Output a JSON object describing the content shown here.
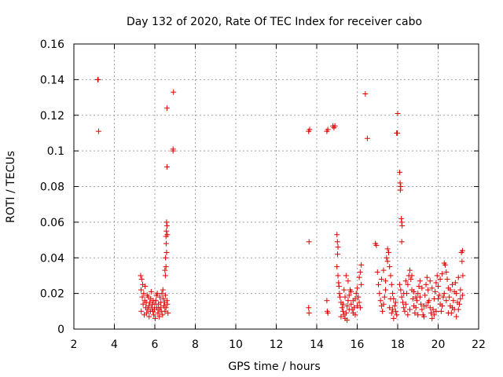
{
  "chart_data": {
    "type": "scatter",
    "title": "Day 132 of 2020, Rate Of TEC Index for receiver cabo",
    "xlabel": "GPS time / hours",
    "ylabel": "ROTI / TECUs",
    "xlim": [
      2,
      22
    ],
    "ylim": [
      0,
      0.16
    ],
    "x_ticks": [
      2,
      4,
      6,
      8,
      10,
      12,
      14,
      16,
      18,
      20,
      22
    ],
    "x_tick_labels": [
      "2",
      "4",
      "6",
      "8",
      "10",
      "12",
      "14",
      "16",
      "18",
      "20",
      "22"
    ],
    "y_ticks": [
      0,
      0.02,
      0.04,
      0.06,
      0.08,
      0.1,
      0.12,
      0.14,
      0.16
    ],
    "y_tick_labels": [
      "0",
      "0.02",
      "0.04",
      "0.06",
      "0.08",
      "0.1",
      "0.12",
      "0.14",
      "0.16"
    ],
    "grid": true,
    "marker": "+",
    "marker_color": "#e00000",
    "series": [
      {
        "name": "ROTI",
        "points": [
          [
            3.2,
            0.14
          ],
          [
            3.18,
            0.14
          ],
          [
            3.22,
            0.111
          ],
          [
            5.3,
            0.03
          ],
          [
            5.35,
            0.028
          ],
          [
            5.4,
            0.025
          ],
          [
            5.32,
            0.022
          ],
          [
            5.45,
            0.02
          ],
          [
            5.38,
            0.018
          ],
          [
            5.5,
            0.016
          ],
          [
            5.42,
            0.014
          ],
          [
            5.55,
            0.012
          ],
          [
            5.33,
            0.01
          ],
          [
            5.6,
            0.009
          ],
          [
            5.48,
            0.008
          ],
          [
            5.65,
            0.011
          ],
          [
            5.7,
            0.013
          ],
          [
            5.75,
            0.015
          ],
          [
            5.8,
            0.017
          ],
          [
            5.85,
            0.012
          ],
          [
            5.9,
            0.01
          ],
          [
            5.95,
            0.008
          ],
          [
            6.0,
            0.014
          ],
          [
            6.05,
            0.016
          ],
          [
            6.1,
            0.012
          ],
          [
            6.15,
            0.009
          ],
          [
            6.2,
            0.011
          ],
          [
            6.25,
            0.018
          ],
          [
            6.3,
            0.015
          ],
          [
            6.35,
            0.02
          ],
          [
            6.4,
            0.022
          ],
          [
            6.45,
            0.013
          ],
          [
            6.5,
            0.01
          ],
          [
            6.55,
            0.012
          ],
          [
            6.6,
            0.016
          ],
          [
            6.65,
            0.009
          ],
          [
            5.52,
            0.024
          ],
          [
            5.62,
            0.019
          ],
          [
            5.72,
            0.007
          ],
          [
            5.82,
            0.021
          ],
          [
            5.92,
            0.016
          ],
          [
            6.02,
            0.006
          ],
          [
            6.12,
            0.02
          ],
          [
            6.22,
            0.007
          ],
          [
            6.32,
            0.01
          ],
          [
            6.42,
            0.017
          ],
          [
            6.52,
            0.019
          ],
          [
            6.62,
            0.014
          ],
          [
            5.58,
            0.015
          ],
          [
            5.68,
            0.018
          ],
          [
            5.78,
            0.01
          ],
          [
            5.88,
            0.014
          ],
          [
            5.98,
            0.011
          ],
          [
            6.08,
            0.019
          ],
          [
            6.18,
            0.014
          ],
          [
            6.28,
            0.012
          ],
          [
            6.38,
            0.008
          ],
          [
            6.48,
            0.015
          ],
          [
            6.52,
            0.03
          ],
          [
            6.5,
            0.033
          ],
          [
            6.55,
            0.035
          ],
          [
            6.53,
            0.04
          ],
          [
            6.58,
            0.043
          ],
          [
            6.56,
            0.048
          ],
          [
            6.55,
            0.052
          ],
          [
            6.57,
            0.055
          ],
          [
            6.6,
            0.058
          ],
          [
            6.58,
            0.06
          ],
          [
            6.62,
            0.053
          ],
          [
            6.6,
            0.124
          ],
          [
            6.6,
            0.091
          ],
          [
            6.9,
            0.1
          ],
          [
            6.9,
            0.101
          ],
          [
            6.92,
            0.133
          ],
          [
            13.6,
            0.111
          ],
          [
            13.65,
            0.112
          ],
          [
            13.62,
            0.049
          ],
          [
            13.6,
            0.012
          ],
          [
            13.62,
            0.009
          ],
          [
            14.5,
            0.111
          ],
          [
            14.55,
            0.112
          ],
          [
            14.8,
            0.114
          ],
          [
            14.85,
            0.113
          ],
          [
            14.9,
            0.114
          ],
          [
            14.5,
            0.016
          ],
          [
            14.52,
            0.01
          ],
          [
            14.55,
            0.009
          ],
          [
            15.0,
            0.053
          ],
          [
            15.02,
            0.049
          ],
          [
            15.05,
            0.046
          ],
          [
            15.03,
            0.042
          ],
          [
            15.0,
            0.035
          ],
          [
            15.05,
            0.03
          ],
          [
            15.08,
            0.026
          ],
          [
            15.1,
            0.024
          ],
          [
            15.12,
            0.02
          ],
          [
            15.15,
            0.018
          ],
          [
            15.2,
            0.015
          ],
          [
            15.25,
            0.012
          ],
          [
            15.3,
            0.01
          ],
          [
            15.35,
            0.008
          ],
          [
            15.4,
            0.006
          ],
          [
            15.45,
            0.009
          ],
          [
            15.5,
            0.013
          ],
          [
            15.55,
            0.016
          ],
          [
            15.6,
            0.019
          ],
          [
            15.65,
            0.022
          ],
          [
            15.7,
            0.014
          ],
          [
            15.75,
            0.011
          ],
          [
            15.8,
            0.009
          ],
          [
            15.85,
            0.012
          ],
          [
            15.9,
            0.017
          ],
          [
            15.95,
            0.02
          ],
          [
            16.0,
            0.023
          ],
          [
            16.05,
            0.018
          ],
          [
            16.1,
            0.015
          ],
          [
            16.15,
            0.012
          ],
          [
            16.2,
            0.025
          ],
          [
            16.15,
            0.032
          ],
          [
            16.2,
            0.036
          ],
          [
            16.1,
            0.029
          ],
          [
            15.2,
            0.007
          ],
          [
            15.3,
            0.014
          ],
          [
            15.4,
            0.018
          ],
          [
            15.5,
            0.005
          ],
          [
            15.6,
            0.011
          ],
          [
            15.7,
            0.021
          ],
          [
            15.8,
            0.016
          ],
          [
            15.9,
            0.008
          ],
          [
            16.0,
            0.013
          ],
          [
            15.35,
            0.022
          ],
          [
            15.45,
            0.03
          ],
          [
            15.55,
            0.027
          ],
          [
            16.4,
            0.132
          ],
          [
            16.5,
            0.107
          ],
          [
            16.9,
            0.048
          ],
          [
            16.95,
            0.047
          ],
          [
            17.0,
            0.032
          ],
          [
            17.05,
            0.025
          ],
          [
            17.1,
            0.02
          ],
          [
            17.15,
            0.016
          ],
          [
            17.2,
            0.013
          ],
          [
            17.25,
            0.01
          ],
          [
            17.3,
            0.014
          ],
          [
            17.35,
            0.018
          ],
          [
            17.4,
            0.022
          ],
          [
            17.45,
            0.04
          ],
          [
            17.5,
            0.045
          ],
          [
            17.55,
            0.043
          ],
          [
            17.5,
            0.038
          ],
          [
            17.6,
            0.035
          ],
          [
            17.65,
            0.03
          ],
          [
            17.7,
            0.025
          ],
          [
            17.75,
            0.02
          ],
          [
            17.8,
            0.017
          ],
          [
            17.85,
            0.013
          ],
          [
            17.9,
            0.01
          ],
          [
            17.95,
            0.008
          ],
          [
            17.6,
            0.012
          ],
          [
            17.7,
            0.009
          ],
          [
            17.8,
            0.006
          ],
          [
            17.9,
            0.015
          ],
          [
            17.2,
            0.028
          ],
          [
            17.3,
            0.033
          ],
          [
            17.4,
            0.027
          ],
          [
            17.65,
            0.017
          ],
          [
            17.75,
            0.011
          ],
          [
            18.0,
            0.121
          ],
          [
            17.95,
            0.11
          ],
          [
            17.98,
            0.11
          ],
          [
            18.1,
            0.088
          ],
          [
            18.12,
            0.082
          ],
          [
            18.15,
            0.08
          ],
          [
            18.13,
            0.078
          ],
          [
            18.18,
            0.062
          ],
          [
            18.2,
            0.06
          ],
          [
            18.22,
            0.058
          ],
          [
            18.2,
            0.049
          ],
          [
            18.1,
            0.025
          ],
          [
            18.15,
            0.022
          ],
          [
            18.2,
            0.018
          ],
          [
            18.25,
            0.015
          ],
          [
            18.3,
            0.012
          ],
          [
            18.35,
            0.01
          ],
          [
            18.4,
            0.014
          ],
          [
            18.45,
            0.02
          ],
          [
            18.5,
            0.025
          ],
          [
            18.55,
            0.03
          ],
          [
            18.6,
            0.033
          ],
          [
            18.65,
            0.028
          ],
          [
            18.7,
            0.022
          ],
          [
            18.75,
            0.017
          ],
          [
            18.8,
            0.013
          ],
          [
            18.85,
            0.009
          ],
          [
            18.9,
            0.012
          ],
          [
            18.95,
            0.016
          ],
          [
            19.0,
            0.02
          ],
          [
            19.05,
            0.024
          ],
          [
            19.1,
            0.018
          ],
          [
            19.15,
            0.014
          ],
          [
            19.2,
            0.011
          ],
          [
            19.25,
            0.008
          ],
          [
            19.3,
            0.013
          ],
          [
            19.35,
            0.019
          ],
          [
            19.4,
            0.025
          ],
          [
            19.45,
            0.029
          ],
          [
            19.5,
            0.022
          ],
          [
            19.55,
            0.016
          ],
          [
            19.6,
            0.012
          ],
          [
            19.65,
            0.009
          ],
          [
            19.7,
            0.006
          ],
          [
            19.75,
            0.011
          ],
          [
            19.8,
            0.017
          ],
          [
            19.85,
            0.021
          ],
          [
            19.9,
            0.026
          ],
          [
            19.95,
            0.03
          ],
          [
            20.0,
            0.024
          ],
          [
            20.05,
            0.019
          ],
          [
            20.1,
            0.014
          ],
          [
            20.15,
            0.01
          ],
          [
            20.2,
            0.013
          ],
          [
            20.25,
            0.018
          ],
          [
            20.3,
            0.037
          ],
          [
            20.35,
            0.036
          ],
          [
            20.4,
            0.032
          ],
          [
            20.45,
            0.028
          ],
          [
            20.5,
            0.023
          ],
          [
            20.55,
            0.018
          ],
          [
            20.6,
            0.013
          ],
          [
            20.65,
            0.009
          ],
          [
            20.7,
            0.012
          ],
          [
            20.75,
            0.016
          ],
          [
            20.8,
            0.021
          ],
          [
            20.85,
            0.026
          ],
          [
            20.9,
            0.02
          ],
          [
            20.95,
            0.015
          ],
          [
            21.0,
            0.011
          ],
          [
            21.05,
            0.014
          ],
          [
            21.1,
            0.022
          ],
          [
            21.15,
            0.043
          ],
          [
            21.2,
            0.044
          ],
          [
            21.18,
            0.038
          ],
          [
            21.22,
            0.03
          ],
          [
            18.3,
            0.02
          ],
          [
            18.5,
            0.008
          ],
          [
            18.7,
            0.03
          ],
          [
            18.9,
            0.018
          ],
          [
            19.1,
            0.027
          ],
          [
            19.3,
            0.007
          ],
          [
            19.5,
            0.015
          ],
          [
            19.7,
            0.023
          ],
          [
            19.9,
            0.01
          ],
          [
            20.1,
            0.028
          ],
          [
            20.3,
            0.02
          ],
          [
            20.5,
            0.009
          ],
          [
            20.7,
            0.025
          ],
          [
            20.9,
            0.007
          ],
          [
            21.1,
            0.017
          ],
          [
            18.4,
            0.027
          ],
          [
            18.6,
            0.011
          ],
          [
            18.8,
            0.021
          ],
          [
            19.0,
            0.008
          ],
          [
            19.2,
            0.023
          ],
          [
            19.4,
            0.013
          ],
          [
            19.6,
            0.027
          ],
          [
            19.8,
            0.008
          ],
          [
            20.0,
            0.017
          ],
          [
            20.2,
            0.031
          ],
          [
            20.4,
            0.016
          ],
          [
            20.6,
            0.022
          ],
          [
            20.8,
            0.011
          ],
          [
            21.0,
            0.029
          ],
          [
            21.2,
            0.019
          ]
        ]
      }
    ]
  }
}
